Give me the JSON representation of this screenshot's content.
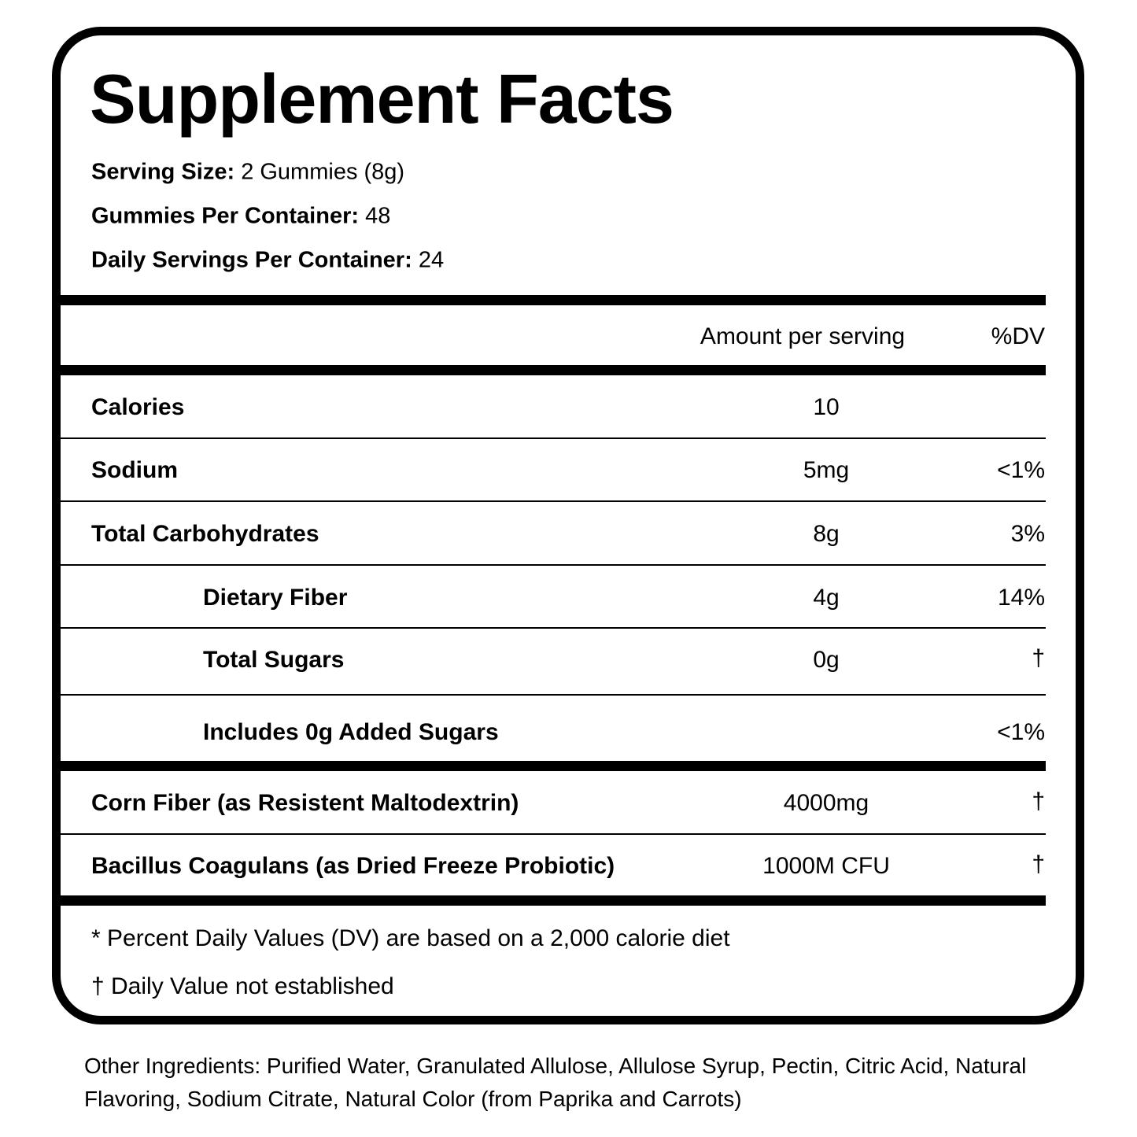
{
  "title": "Supplement Facts",
  "serving": [
    {
      "label": "Serving Size:",
      "value": "2 Gummies (8g)"
    },
    {
      "label": "Gummies Per Container:",
      "value": "48"
    },
    {
      "label": "Daily Servings Per Container:",
      "value": "24"
    }
  ],
  "header": {
    "amount": "Amount per serving",
    "dv": "%DV"
  },
  "rows": [
    {
      "name": "Calories",
      "amount": "10",
      "dv": ""
    },
    {
      "name": "Sodium",
      "amount": "5mg",
      "dv": "<1%"
    },
    {
      "name": "Total Carbohydrates",
      "amount": "8g",
      "dv": "3%"
    },
    {
      "name": "Dietary Fiber",
      "amount": "4g",
      "dv": "14%"
    },
    {
      "name": "Total Sugars",
      "amount": "0g",
      "dv": "†"
    },
    {
      "name": "Includes 0g Added Sugars",
      "amount": "",
      "dv": "<1%"
    },
    {
      "name": "Corn Fiber (as Resistent Maltodextrin)",
      "amount": "4000mg",
      "dv": "†"
    },
    {
      "name": "Bacillus Coagulans (as Dried Freeze Probiotic)",
      "amount": "1000M CFU",
      "dv": "†"
    }
  ],
  "footnotes": [
    "* Percent Daily Values (DV) are based on a 2,000 calorie diet",
    "† Daily Value not established"
  ],
  "other_ingredients": "Other Ingredients: Purified Water, Granulated Allulose, Allulose Syrup, Pectin, Citric Acid, Natural Flavoring, Sodium Citrate, Natural Color (from Paprika and Carrots)"
}
